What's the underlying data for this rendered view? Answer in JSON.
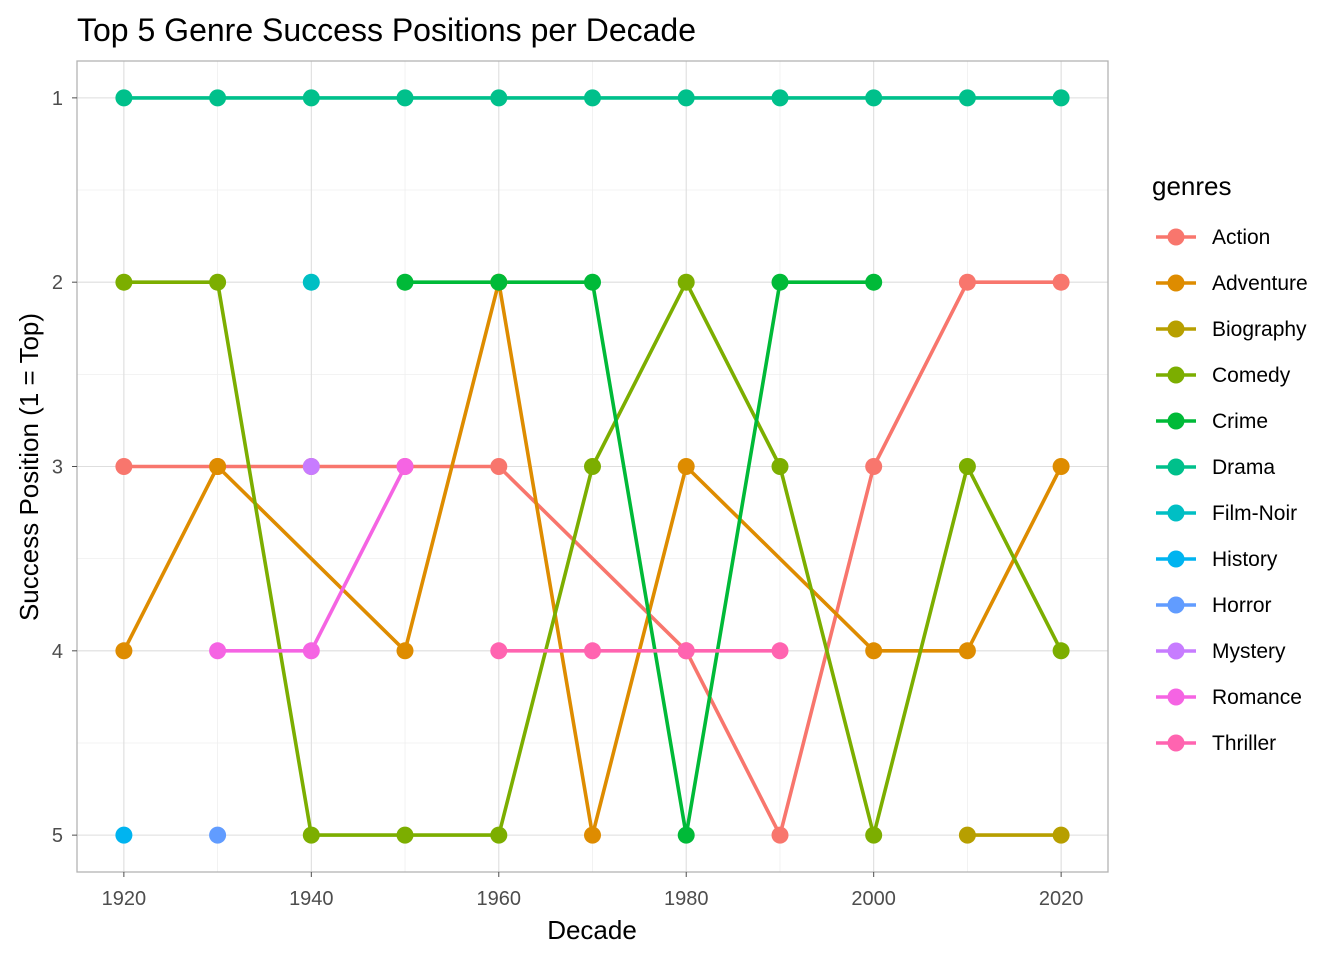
{
  "chart_data": {
    "type": "line",
    "title": "Top 5 Genre Success Positions per Decade",
    "xlabel": "Decade",
    "ylabel": "Success Position (1 = Top)",
    "x_ticks": [
      1920,
      1940,
      1960,
      1980,
      2000,
      2020
    ],
    "y_ticks": [
      1,
      2,
      3,
      4,
      5
    ],
    "xlim": [
      1915,
      2025
    ],
    "ylim": [
      0.8,
      5.2
    ],
    "y_reversed": true,
    "grid": true,
    "legend": {
      "title": "genres",
      "position": "right"
    },
    "series": [
      {
        "name": "Action",
        "color": "#F8766D",
        "points": [
          [
            1920,
            3
          ],
          [
            1930,
            3
          ],
          [
            1940,
            3
          ],
          [
            1950,
            3
          ],
          [
            1960,
            3
          ],
          [
            1980,
            4
          ],
          [
            1990,
            5
          ],
          [
            2000,
            3
          ],
          [
            2010,
            2
          ],
          [
            2020,
            2
          ]
        ]
      },
      {
        "name": "Adventure",
        "color": "#DE8C00",
        "points": [
          [
            1920,
            4
          ],
          [
            1930,
            3
          ],
          [
            1950,
            4
          ],
          [
            1960,
            2
          ],
          [
            1970,
            5
          ],
          [
            1980,
            3
          ],
          [
            2000,
            4
          ],
          [
            2010,
            4
          ],
          [
            2020,
            3
          ]
        ]
      },
      {
        "name": "Biography",
        "color": "#B79F00",
        "points": [
          [
            2010,
            5
          ],
          [
            2020,
            5
          ]
        ]
      },
      {
        "name": "Comedy",
        "color": "#7CAE00",
        "points": [
          [
            1920,
            2
          ],
          [
            1930,
            2
          ],
          [
            1940,
            5
          ],
          [
            1950,
            5
          ],
          [
            1960,
            5
          ],
          [
            1970,
            3
          ],
          [
            1980,
            2
          ],
          [
            1990,
            3
          ],
          [
            2000,
            5
          ],
          [
            2010,
            3
          ],
          [
            2020,
            4
          ]
        ]
      },
      {
        "name": "Crime",
        "color": "#00BA38",
        "points": [
          [
            1950,
            2
          ],
          [
            1960,
            2
          ],
          [
            1970,
            2
          ],
          [
            1980,
            5
          ],
          [
            1990,
            2
          ],
          [
            2000,
            2
          ]
        ]
      },
      {
        "name": "Drama",
        "color": "#00C08B",
        "points": [
          [
            1920,
            1
          ],
          [
            1930,
            1
          ],
          [
            1940,
            1
          ],
          [
            1950,
            1
          ],
          [
            1960,
            1
          ],
          [
            1970,
            1
          ],
          [
            1980,
            1
          ],
          [
            1990,
            1
          ],
          [
            2000,
            1
          ],
          [
            2010,
            1
          ],
          [
            2020,
            1
          ]
        ]
      },
      {
        "name": "Film-Noir",
        "color": "#00BFC4",
        "points": [
          [
            1940,
            2
          ]
        ]
      },
      {
        "name": "History",
        "color": "#00B4F0",
        "points": [
          [
            1920,
            5
          ]
        ]
      },
      {
        "name": "Horror",
        "color": "#619CFF",
        "points": [
          [
            1930,
            5
          ]
        ]
      },
      {
        "name": "Mystery",
        "color": "#C77CFF",
        "points": [
          [
            1940,
            3
          ]
        ]
      },
      {
        "name": "Romance",
        "color": "#F564E3",
        "points": [
          [
            1930,
            4
          ],
          [
            1940,
            4
          ],
          [
            1950,
            3
          ]
        ]
      },
      {
        "name": "Thriller",
        "color": "#FF64B0",
        "points": [
          [
            1960,
            4
          ],
          [
            1970,
            4
          ],
          [
            1980,
            4
          ],
          [
            1990,
            4
          ]
        ]
      }
    ]
  }
}
